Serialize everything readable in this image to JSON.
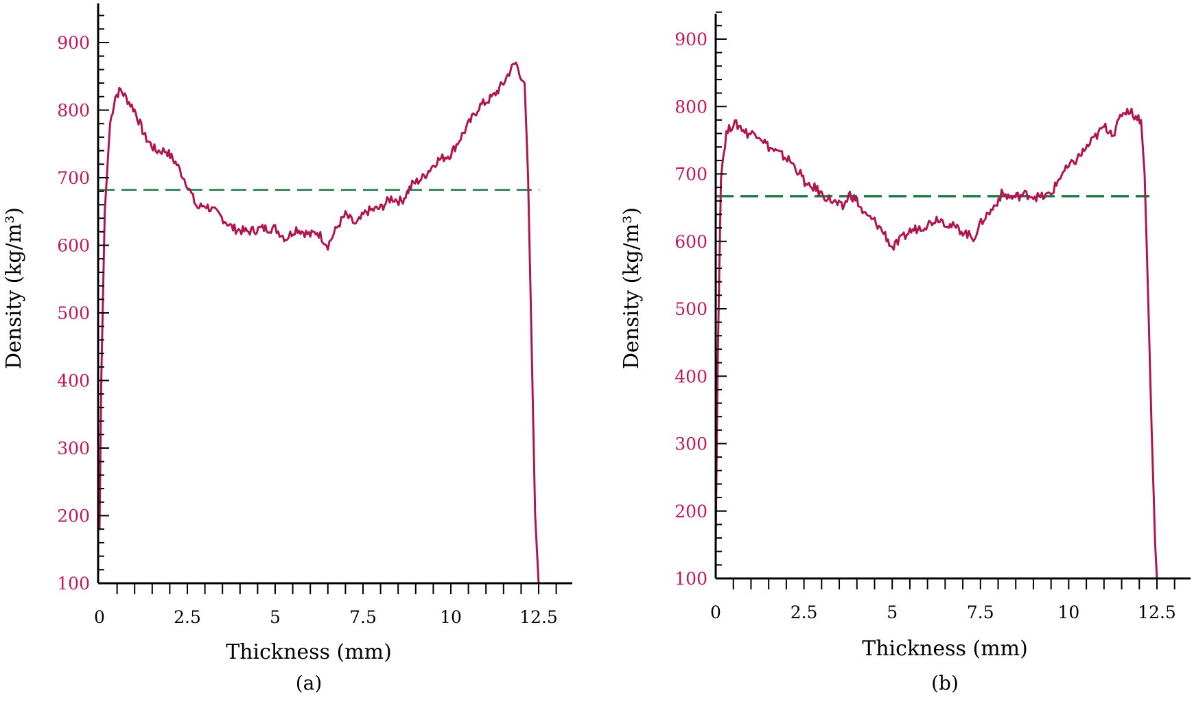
{
  "colors": {
    "curve": "#b0154f",
    "mean_line": "#1f7a45",
    "y_tick_text": "#c2185b",
    "axis": "#000000"
  },
  "chart_data": [
    {
      "type": "line",
      "panel_label": "(a)",
      "xlabel": "Thickness (mm)",
      "ylabel": "Density (kg/m³)",
      "xlim": [
        0,
        13.5
      ],
      "ylim": [
        100,
        950
      ],
      "x_ticks": [
        0,
        2.5,
        5,
        7.5,
        10,
        12.5
      ],
      "x_tick_labels": [
        "0",
        "2.5",
        "5",
        "7.5",
        "10",
        "12.5"
      ],
      "y_ticks": [
        100,
        200,
        300,
        400,
        500,
        600,
        700,
        800,
        900
      ],
      "y_tick_labels": [
        "100",
        "200",
        "300",
        "400",
        "500",
        "600",
        "700",
        "800",
        "900"
      ],
      "mean_density": 682,
      "series": [
        {
          "name": "density profile",
          "x": [
            0,
            0.05,
            0.15,
            0.3,
            0.45,
            0.6,
            0.8,
            1.0,
            1.3,
            1.6,
            1.9,
            2.2,
            2.5,
            2.7,
            2.8,
            3.0,
            3.4,
            3.8,
            4.2,
            4.6,
            5.0,
            5.3,
            5.6,
            5.8,
            6.0,
            6.2,
            6.5,
            6.8,
            7.0,
            7.3,
            7.6,
            8.0,
            8.3,
            8.6,
            8.9,
            9.2,
            9.6,
            10.0,
            10.4,
            10.8,
            11.2,
            11.5,
            11.7,
            11.85,
            12.0,
            12.1,
            12.2,
            12.3,
            12.4,
            12.5
          ],
          "y": [
            180,
            400,
            650,
            780,
            820,
            830,
            815,
            800,
            760,
            740,
            740,
            720,
            690,
            665,
            655,
            660,
            645,
            625,
            620,
            625,
            625,
            610,
            625,
            620,
            615,
            620,
            600,
            630,
            645,
            630,
            650,
            655,
            670,
            665,
            690,
            700,
            725,
            735,
            770,
            805,
            820,
            840,
            860,
            870,
            850,
            840,
            700,
            450,
            200,
            100
          ]
        }
      ]
    },
    {
      "type": "line",
      "panel_label": "(b)",
      "xlabel": "Thickness (mm)",
      "ylabel": "Density (kg/m³)",
      "xlim": [
        0,
        13.5
      ],
      "ylim": [
        100,
        950
      ],
      "x_ticks": [
        0,
        2.5,
        5,
        7.5,
        10,
        12.5
      ],
      "x_tick_labels": [
        "0",
        "2.5",
        "5",
        "7.5",
        "10",
        "12.5"
      ],
      "y_ticks": [
        100,
        200,
        300,
        400,
        500,
        600,
        700,
        800,
        900
      ],
      "y_tick_labels": [
        "100",
        "200",
        "300",
        "400",
        "500",
        "600",
        "700",
        "800",
        "900"
      ],
      "mean_density": 667,
      "series": [
        {
          "name": "density profile",
          "x": [
            0,
            0.05,
            0.15,
            0.3,
            0.5,
            0.7,
            0.9,
            1.2,
            1.5,
            1.8,
            2.1,
            2.4,
            2.6,
            2.8,
            3.0,
            3.3,
            3.6,
            3.8,
            4.0,
            4.2,
            4.5,
            4.8,
            5.0,
            5.2,
            5.5,
            6.0,
            6.3,
            6.6,
            7.0,
            7.3,
            7.6,
            7.8,
            8.1,
            8.4,
            8.8,
            9.2,
            9.5,
            9.8,
            10.2,
            10.6,
            11.0,
            11.3,
            11.5,
            11.7,
            11.9,
            12.05,
            12.15,
            12.25,
            12.35,
            12.45,
            12.5
          ],
          "y": [
            150,
            400,
            700,
            760,
            775,
            770,
            760,
            760,
            740,
            730,
            720,
            700,
            680,
            680,
            670,
            660,
            650,
            670,
            660,
            640,
            630,
            610,
            590,
            600,
            615,
            625,
            635,
            625,
            615,
            605,
            635,
            645,
            670,
            665,
            670,
            665,
            670,
            700,
            720,
            745,
            770,
            760,
            790,
            795,
            785,
            780,
            700,
            520,
            320,
            150,
            100
          ]
        }
      ]
    }
  ]
}
